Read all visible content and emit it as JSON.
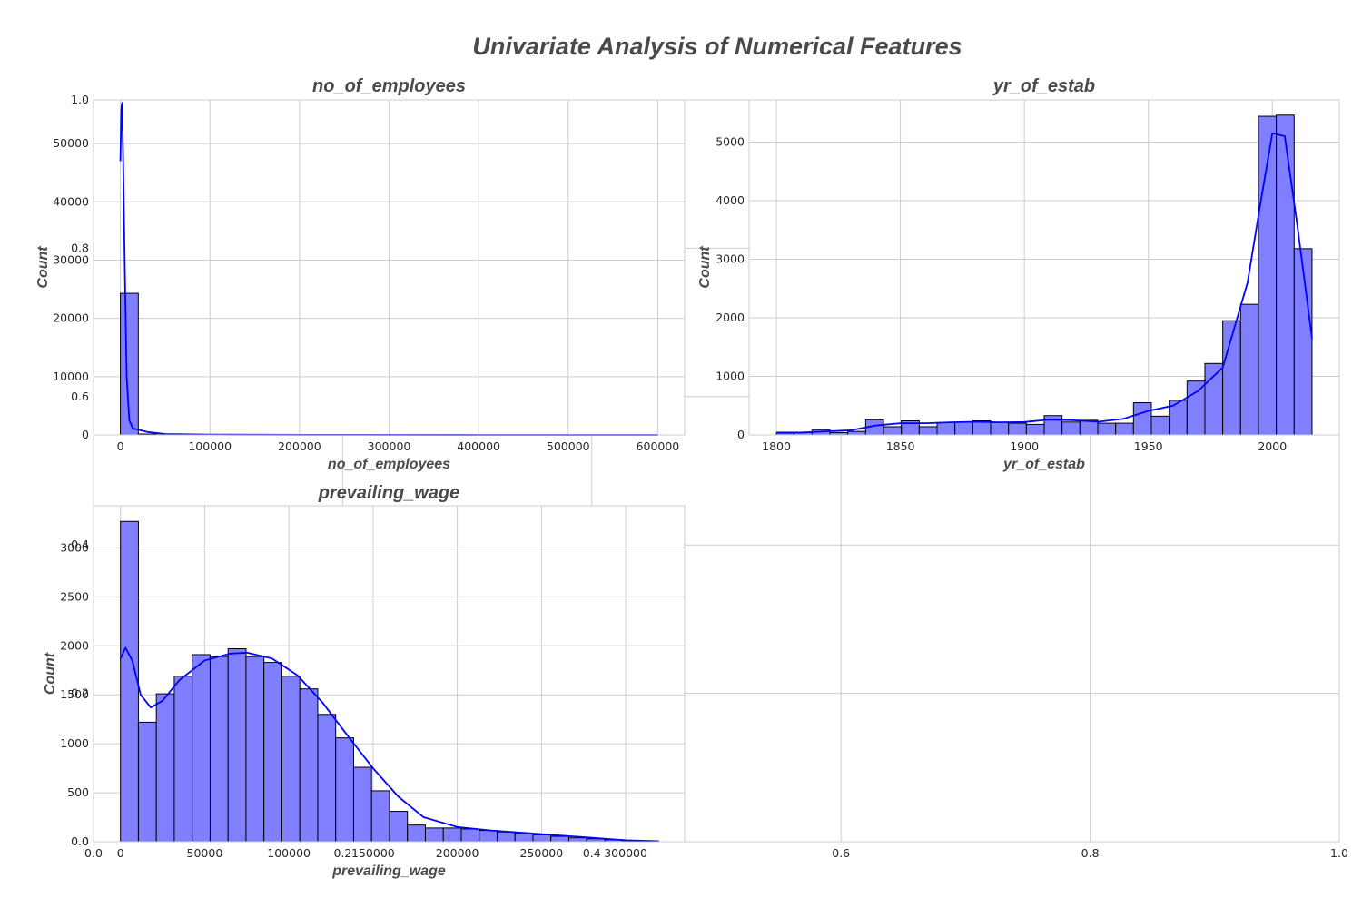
{
  "figure": {
    "title": "Univariate Analysis of Numerical Features",
    "background_axis": {
      "xticks": [
        "0.0",
        "0.2",
        "0.4",
        "0.6",
        "0.8",
        "1.0"
      ],
      "yticks": [
        "0.0",
        "0.2",
        "0.4",
        "0.6",
        "0.8",
        "1.0"
      ]
    }
  },
  "colors": {
    "bar_fill": "#7f7fff",
    "bar_edge": "#000000",
    "kde": "#0000ff",
    "grid": "#cccccc",
    "spine": "#cccccc",
    "title": "#4a4a4a"
  },
  "chart_data": [
    {
      "type": "bar",
      "title": "no_of_employees",
      "xlabel": "no_of_employees",
      "ylabel": "Count",
      "xlim": [
        -30000,
        630000
      ],
      "ylim": [
        0,
        57500
      ],
      "xticks": [
        0,
        100000,
        200000,
        300000,
        400000,
        500000,
        600000
      ],
      "yticks": [
        0,
        10000,
        20000,
        30000,
        40000,
        50000
      ],
      "bin_start": 0,
      "bin_width": 20000,
      "values": [
        24300,
        160,
        45,
        22,
        15,
        10,
        8,
        6,
        5,
        4,
        4,
        3,
        3,
        2,
        2,
        2,
        2,
        1,
        1,
        1,
        1,
        1,
        1,
        1,
        1,
        1,
        1,
        1,
        1,
        1
      ],
      "kde": {
        "x": [
          0,
          1000,
          2000,
          3000,
          5000,
          7000,
          10000,
          14000,
          20000,
          30000,
          50000,
          100000,
          200000,
          400000,
          600000
        ],
        "y": [
          47000,
          56000,
          57000,
          48000,
          28000,
          10000,
          2500,
          1100,
          900,
          500,
          150,
          60,
          20,
          5,
          0
        ]
      }
    },
    {
      "type": "bar",
      "title": "yr_of_estab",
      "xlabel": "yr_of_estab",
      "ylabel": "Count",
      "xlim": [
        1789,
        2027
      ],
      "ylim": [
        0,
        5720
      ],
      "xticks": [
        1800,
        1850,
        1900,
        1950,
        2000
      ],
      "yticks": [
        0,
        1000,
        2000,
        3000,
        4000,
        5000
      ],
      "bin_start": 1800,
      "bin_width": 7.2,
      "values": [
        30,
        40,
        90,
        40,
        60,
        260,
        140,
        240,
        140,
        210,
        220,
        240,
        210,
        200,
        180,
        330,
        220,
        250,
        200,
        200,
        550,
        320,
        590,
        920,
        1220,
        1950,
        2230,
        5440,
        5460,
        3180
      ],
      "kde": {
        "x": [
          1800,
          1810,
          1820,
          1830,
          1840,
          1850,
          1860,
          1870,
          1880,
          1890,
          1900,
          1910,
          1920,
          1930,
          1940,
          1950,
          1960,
          1970,
          1980,
          1990,
          1995,
          2000,
          2005,
          2010,
          2016
        ],
        "y": [
          40,
          40,
          60,
          80,
          160,
          200,
          200,
          215,
          225,
          215,
          220,
          260,
          250,
          225,
          275,
          410,
          500,
          750,
          1150,
          2600,
          3900,
          5150,
          5100,
          3600,
          1650
        ]
      }
    },
    {
      "type": "bar",
      "title": "prevailing_wage",
      "xlabel": "prevailing_wage",
      "ylabel": "Count",
      "xlim": [
        -16000,
        335000
      ],
      "ylim": [
        0,
        3430
      ],
      "xticks": [
        0,
        50000,
        100000,
        150000,
        200000,
        250000,
        300000
      ],
      "yticks": [
        0,
        500,
        1000,
        1500,
        2000,
        2500,
        3000
      ],
      "bin_start": 0,
      "bin_width": 10650,
      "values": [
        3270,
        1220,
        1510,
        1690,
        1910,
        1890,
        1970,
        1890,
        1830,
        1690,
        1560,
        1300,
        1060,
        760,
        520,
        310,
        170,
        140,
        140,
        130,
        115,
        100,
        85,
        70,
        55,
        40,
        30,
        20,
        12,
        8
      ],
      "kde": {
        "x": [
          0,
          3000,
          7000,
          12000,
          18000,
          25000,
          35000,
          50000,
          65000,
          75000,
          90000,
          105000,
          120000,
          135000,
          150000,
          165000,
          180000,
          200000,
          220000,
          240000,
          260000,
          280000,
          300000,
          319000
        ],
        "y": [
          1870,
          1980,
          1850,
          1500,
          1370,
          1440,
          1650,
          1850,
          1920,
          1930,
          1870,
          1700,
          1420,
          1080,
          750,
          460,
          250,
          150,
          115,
          90,
          65,
          40,
          15,
          5
        ]
      }
    }
  ]
}
